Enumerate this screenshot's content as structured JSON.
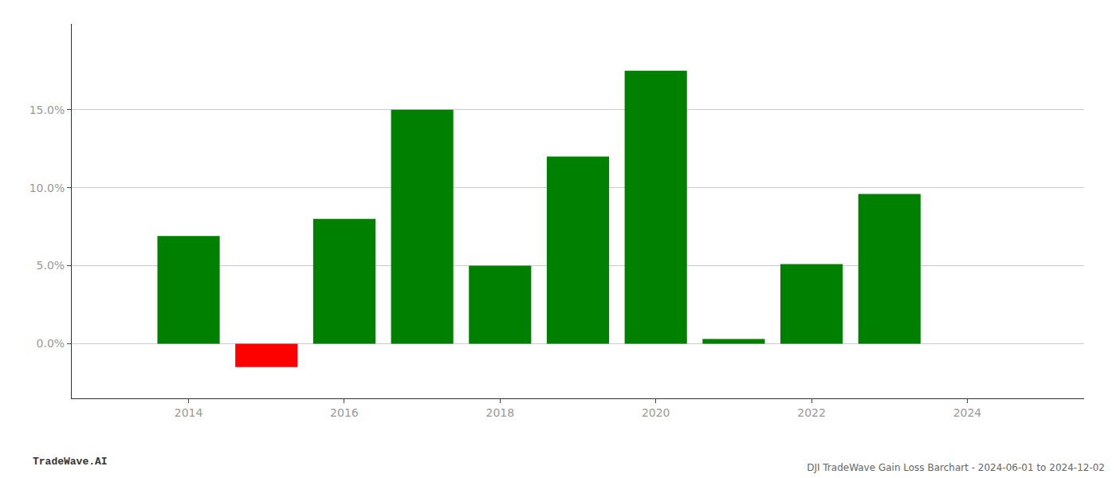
{
  "chart_data": {
    "type": "bar",
    "title": "DJI TradeWave Gain Loss Barchart - 2024-06-01 to 2024-12-02",
    "annotations": [
      "TradeWave.AI"
    ],
    "x": [
      2014,
      2015,
      2016,
      2017,
      2018,
      2019,
      2020,
      2021,
      2022,
      2023
    ],
    "values": [
      0.069,
      -0.015,
      0.08,
      0.15,
      0.05,
      0.12,
      0.175,
      0.003,
      0.051,
      0.096
    ],
    "colors": [
      "#008000",
      "#ff0000",
      "#008000",
      "#008000",
      "#008000",
      "#008000",
      "#008000",
      "#008000",
      "#008000",
      "#008000"
    ],
    "xlim": [
      2012.5,
      2025.5
    ],
    "xticks": [
      2014,
      2016,
      2018,
      2020,
      2022,
      2024
    ],
    "ylim": [
      -0.035,
      0.205
    ],
    "yticks": [
      {
        "value": 0.0,
        "label": "0.0%"
      },
      {
        "value": 0.05,
        "label": "5.0%"
      },
      {
        "value": 0.1,
        "label": "10.0%"
      },
      {
        "value": 0.15,
        "label": "15.0%"
      }
    ],
    "grid": true
  }
}
